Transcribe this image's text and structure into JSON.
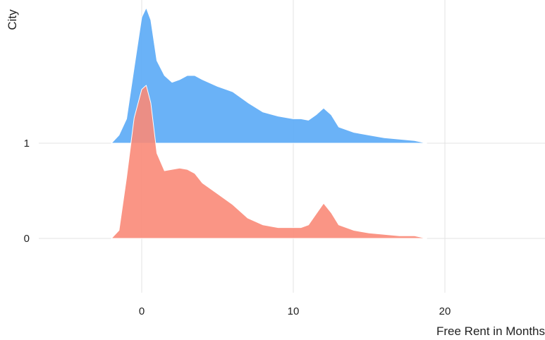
{
  "chart_data": {
    "type": "area",
    "chart_style": "ridgeline density",
    "xlabel": "Free Rent in Months",
    "ylabel": "City",
    "xlim": [
      -9,
      26
    ],
    "x_ticks": [
      0,
      10,
      20
    ],
    "y_categories": [
      "0",
      "1"
    ],
    "grid": true,
    "legend": "none",
    "colors": {
      "1": "#5aaaf6",
      "0": "#fa8a78"
    },
    "series": [
      {
        "category": "1",
        "x": [
          -2.0,
          -1.5,
          -1.0,
          -0.5,
          0.0,
          0.3,
          0.6,
          1.0,
          1.5,
          2.0,
          2.5,
          3.0,
          3.5,
          4.0,
          5.0,
          6.0,
          7.0,
          8.0,
          9.0,
          10.0,
          10.5,
          11.0,
          11.5,
          12.0,
          12.5,
          13.0,
          14.0,
          15.0,
          16.0,
          17.0,
          18.0,
          18.8
        ],
        "density": [
          0.0,
          0.06,
          0.18,
          0.56,
          0.93,
          1.0,
          0.91,
          0.61,
          0.5,
          0.45,
          0.47,
          0.5,
          0.5,
          0.47,
          0.42,
          0.38,
          0.3,
          0.23,
          0.2,
          0.18,
          0.18,
          0.17,
          0.21,
          0.26,
          0.21,
          0.12,
          0.08,
          0.06,
          0.04,
          0.03,
          0.02,
          0.0
        ]
      },
      {
        "category": "0",
        "x": [
          -2.0,
          -1.5,
          -1.0,
          -0.5,
          0.0,
          0.3,
          0.6,
          1.0,
          1.5,
          2.0,
          2.5,
          3.0,
          3.5,
          4.0,
          5.0,
          6.0,
          7.0,
          8.0,
          9.0,
          10.0,
          10.5,
          11.0,
          11.5,
          12.0,
          12.5,
          13.0,
          14.0,
          15.0,
          16.0,
          17.0,
          18.0,
          18.8
        ],
        "density": [
          0.0,
          0.06,
          0.45,
          0.89,
          1.1,
          1.13,
          1.0,
          0.63,
          0.5,
          0.51,
          0.52,
          0.51,
          0.48,
          0.41,
          0.33,
          0.25,
          0.15,
          0.1,
          0.08,
          0.08,
          0.08,
          0.1,
          0.18,
          0.26,
          0.19,
          0.1,
          0.06,
          0.04,
          0.03,
          0.02,
          0.02,
          0.0
        ]
      }
    ]
  }
}
